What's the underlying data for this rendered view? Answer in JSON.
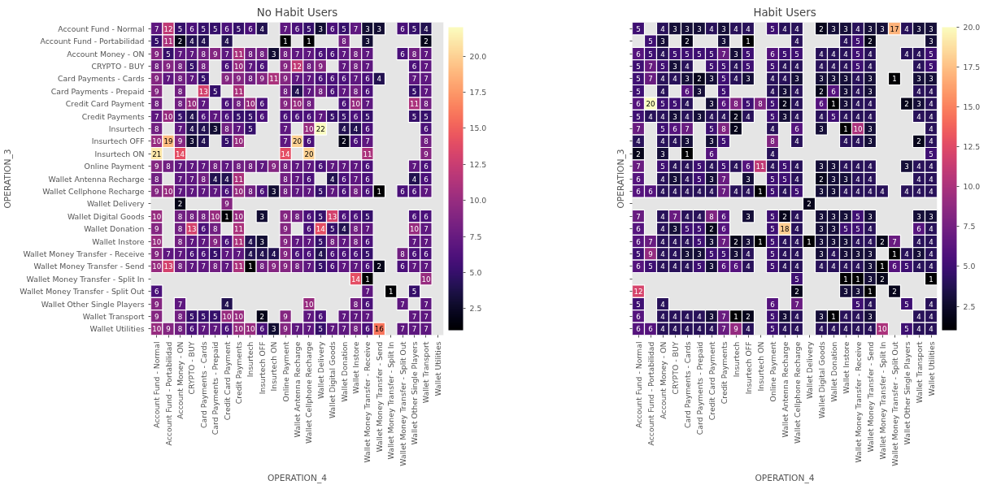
{
  "chart_data": [
    {
      "type": "heatmap",
      "title": "No Habit Users",
      "xlabel": "OPERATION_4",
      "ylabel": "OPERATION_3",
      "categories": [
        "Account Fund - Normal",
        "Account Fund - Portabilidad",
        "Account Money - ON",
        "CRYPTO - BUY",
        "Card Payments - Cards",
        "Card Payments - Prepaid",
        "Credit Card Payment",
        "Credit Payments",
        "Insurtech",
        "Insurtech OFF",
        "Insurtech ON",
        "Online Payment",
        "Wallet Antenna Recharge",
        "Wallet Cellphone Recharge",
        "Wallet Delivery",
        "Wallet Digital Goods",
        "Wallet Donation",
        "Wallet Instore",
        "Wallet Money Transfer - Receive",
        "Wallet Money Transfer - Send",
        "Wallet Money Transfer - Split In",
        "Wallet Money Transfer - Split Out",
        "Wallet Other Single Players",
        "Wallet Transport",
        "Wallet Utilities"
      ],
      "y_categories": [
        "Account Fund - Normal",
        "Account Fund - Portabilidad",
        "Account Money - ON",
        "CRYPTO - BUY",
        "Card Payments - Cards",
        "Card Payments - Prepaid",
        "Credit Card Payment",
        "Credit Payments",
        "Insurtech",
        "Insurtech OFF",
        "Insurtech ON",
        "Online Payment",
        "Wallet Antenna Recharge",
        "Wallet Cellphone Recharge",
        "Wallet Delivery",
        "Wallet Digital Goods",
        "Wallet Donation",
        "Wallet Instore",
        "Wallet Money Transfer - Receive",
        "Wallet Money Transfer - Send",
        "Wallet Money Transfer - Split In",
        "Wallet Money Transfer - Split Out",
        "Wallet Other Single Players",
        "Wallet Transport",
        "Wallet Utilities"
      ],
      "cells": [
        [
          7,
          12,
          5,
          6,
          5,
          5,
          6,
          5,
          6,
          4,
          null,
          7,
          6,
          5,
          3,
          6,
          5,
          7,
          3,
          3,
          null,
          6,
          5,
          4,
          null
        ],
        [
          5,
          11,
          2,
          4,
          4,
          null,
          4,
          null,
          null,
          null,
          null,
          1,
          null,
          1,
          null,
          null,
          8,
          null,
          3,
          null,
          null,
          null,
          null,
          2,
          null
        ],
        [
          9,
          5,
          7,
          7,
          8,
          9,
          7,
          11,
          8,
          8,
          3,
          8,
          7,
          7,
          6,
          6,
          7,
          8,
          7,
          null,
          null,
          6,
          8,
          7,
          null
        ],
        [
          8,
          9,
          8,
          5,
          8,
          null,
          6,
          10,
          7,
          6,
          null,
          9,
          12,
          8,
          9,
          null,
          7,
          8,
          7,
          null,
          null,
          null,
          6,
          7,
          null
        ],
        [
          9,
          7,
          8,
          7,
          5,
          null,
          9,
          9,
          8,
          9,
          11,
          9,
          7,
          7,
          6,
          6,
          6,
          7,
          6,
          4,
          null,
          null,
          7,
          7,
          null
        ],
        [
          9,
          null,
          8,
          null,
          13,
          5,
          null,
          11,
          null,
          null,
          null,
          8,
          4,
          7,
          8,
          6,
          7,
          8,
          6,
          null,
          null,
          null,
          5,
          7,
          null
        ],
        [
          8,
          null,
          8,
          10,
          7,
          null,
          6,
          8,
          10,
          6,
          null,
          9,
          10,
          8,
          null,
          null,
          6,
          10,
          7,
          null,
          null,
          null,
          11,
          8,
          null
        ],
        [
          7,
          10,
          5,
          4,
          6,
          7,
          6,
          5,
          5,
          6,
          null,
          6,
          6,
          6,
          7,
          5,
          5,
          6,
          5,
          null,
          null,
          null,
          5,
          5,
          null
        ],
        [
          8,
          null,
          7,
          4,
          4,
          3,
          8,
          7,
          5,
          null,
          null,
          7,
          null,
          10,
          22,
          null,
          4,
          4,
          6,
          null,
          null,
          null,
          null,
          6,
          null
        ],
        [
          10,
          19,
          9,
          3,
          4,
          null,
          5,
          10,
          null,
          null,
          null,
          7,
          20,
          6,
          null,
          null,
          2,
          6,
          7,
          null,
          null,
          null,
          null,
          8,
          null
        ],
        [
          21,
          null,
          14,
          null,
          null,
          null,
          null,
          null,
          null,
          null,
          null,
          14,
          null,
          20,
          null,
          null,
          null,
          null,
          11,
          null,
          null,
          null,
          null,
          9,
          null
        ],
        [
          9,
          8,
          7,
          7,
          7,
          8,
          7,
          8,
          8,
          7,
          9,
          8,
          7,
          7,
          6,
          7,
          7,
          7,
          6,
          null,
          null,
          null,
          7,
          6,
          null
        ],
        [
          8,
          null,
          7,
          7,
          8,
          4,
          4,
          11,
          null,
          null,
          null,
          8,
          7,
          6,
          null,
          4,
          6,
          7,
          6,
          null,
          null,
          null,
          4,
          6,
          null
        ],
        [
          9,
          10,
          7,
          7,
          7,
          7,
          6,
          10,
          8,
          6,
          3,
          8,
          7,
          7,
          5,
          7,
          6,
          8,
          6,
          1,
          null,
          6,
          6,
          7,
          null
        ],
        [
          null,
          null,
          2,
          null,
          null,
          null,
          9,
          null,
          null,
          null,
          null,
          null,
          null,
          null,
          null,
          null,
          null,
          null,
          null,
          null,
          null,
          null,
          null,
          null,
          null
        ],
        [
          10,
          null,
          8,
          8,
          8,
          10,
          1,
          10,
          null,
          3,
          null,
          9,
          8,
          6,
          5,
          13,
          6,
          6,
          5,
          null,
          null,
          null,
          6,
          6,
          null
        ],
        [
          9,
          null,
          8,
          13,
          6,
          8,
          null,
          11,
          null,
          null,
          null,
          9,
          null,
          6,
          14,
          5,
          4,
          8,
          7,
          null,
          null,
          null,
          10,
          7,
          null
        ],
        [
          10,
          null,
          8,
          7,
          7,
          9,
          6,
          11,
          4,
          3,
          null,
          9,
          7,
          7,
          5,
          8,
          7,
          8,
          6,
          null,
          null,
          null,
          7,
          7,
          null
        ],
        [
          9,
          7,
          7,
          6,
          6,
          5,
          7,
          7,
          4,
          4,
          4,
          9,
          6,
          6,
          4,
          6,
          6,
          6,
          5,
          null,
          null,
          8,
          6,
          6,
          null
        ],
        [
          10,
          13,
          8,
          7,
          7,
          8,
          7,
          11,
          1,
          8,
          9,
          9,
          8,
          7,
          5,
          6,
          7,
          7,
          6,
          2,
          null,
          6,
          7,
          7,
          null
        ],
        [
          null,
          null,
          null,
          null,
          null,
          null,
          null,
          null,
          null,
          null,
          null,
          null,
          null,
          null,
          null,
          null,
          null,
          14,
          1,
          null,
          null,
          null,
          null,
          10,
          null
        ],
        [
          6,
          null,
          null,
          null,
          null,
          null,
          null,
          null,
          null,
          null,
          null,
          null,
          null,
          null,
          null,
          null,
          null,
          null,
          7,
          null,
          1,
          null,
          5,
          null,
          null
        ],
        [
          9,
          null,
          7,
          null,
          null,
          null,
          4,
          null,
          null,
          null,
          null,
          null,
          null,
          10,
          null,
          null,
          null,
          8,
          6,
          null,
          null,
          7,
          null,
          7,
          null
        ],
        [
          9,
          null,
          8,
          5,
          5,
          5,
          10,
          10,
          null,
          2,
          null,
          9,
          null,
          7,
          6,
          null,
          7,
          7,
          7,
          null,
          null,
          null,
          7,
          7,
          null
        ],
        [
          10,
          9,
          8,
          6,
          7,
          7,
          6,
          10,
          10,
          6,
          3,
          9,
          7,
          7,
          5,
          7,
          7,
          8,
          6,
          16,
          null,
          7,
          7,
          7,
          null
        ]
      ],
      "clim": [
        1,
        22
      ],
      "cticks": [
        2.5,
        {
          "value": 5,
          "label": "5.0"
        },
        7.5,
        {
          "value": 10,
          "label": "10.0"
        },
        12.5,
        {
          "value": 15,
          "label": "15.0"
        },
        17.5,
        {
          "value": 20,
          "label": "20.0"
        }
      ],
      "data_labels": true
    },
    {
      "type": "heatmap",
      "title": "Habit Users",
      "xlabel": "OPERATION_4",
      "ylabel": "OPERATION_3",
      "tick_labels": "x",
      "categories": [
        "Account Fund - Normal",
        "Account Fund - Portabilidad",
        "Account Money - ON",
        "CRYPTO - BUY",
        "Card Payments - Cards",
        "Card Payments - Prepaid",
        "Credit Card Payment",
        "Credit Payments",
        "Insurtech",
        "Insurtech OFF",
        "Insurtech ON",
        "Online Payment",
        "Wallet Antenna Recharge",
        "Wallet Cellphone Recharge",
        "Wallet Delivery",
        "Wallet Digital Goods",
        "Wallet Donation",
        "Wallet Instore",
        "Wallet Money Transfer - Receive",
        "Wallet Money Transfer - Send",
        "Wallet Money Transfer - Split In",
        "Wallet Money Transfer - Split Out",
        "Wallet Other Single Players",
        "Wallet Transport",
        "Wallet Utilities"
      ],
      "y_categories": [
        null,
        null,
        null,
        null,
        null,
        null,
        null,
        null,
        null,
        null,
        null,
        null,
        null,
        null,
        null,
        null,
        null,
        null,
        null,
        null,
        null,
        null,
        null,
        null,
        null
      ],
      "cells": [
        [
          5,
          null,
          4,
          3,
          3,
          3,
          4,
          3,
          4,
          4,
          null,
          5,
          4,
          4,
          null,
          2,
          3,
          3,
          4,
          3,
          3,
          17,
          4,
          3,
          3
        ],
        [
          null,
          5,
          3,
          null,
          2,
          null,
          null,
          3,
          null,
          1,
          null,
          null,
          null,
          4,
          null,
          null,
          null,
          4,
          5,
          2,
          null,
          null,
          null,
          null,
          3
        ],
        [
          6,
          5,
          4,
          5,
          5,
          5,
          5,
          7,
          3,
          5,
          null,
          6,
          5,
          5,
          null,
          4,
          4,
          4,
          5,
          4,
          null,
          null,
          4,
          4,
          5
        ],
        [
          5,
          7,
          5,
          3,
          4,
          null,
          5,
          5,
          4,
          5,
          null,
          5,
          4,
          4,
          null,
          4,
          4,
          4,
          5,
          4,
          null,
          null,
          null,
          4,
          5
        ],
        [
          5,
          7,
          4,
          4,
          3,
          2,
          3,
          5,
          4,
          3,
          null,
          4,
          4,
          3,
          null,
          3,
          3,
          3,
          4,
          3,
          null,
          1,
          null,
          3,
          3
        ],
        [
          5,
          null,
          4,
          null,
          6,
          3,
          null,
          5,
          null,
          null,
          null,
          4,
          3,
          4,
          null,
          2,
          6,
          3,
          4,
          3,
          null,
          null,
          null,
          4,
          4
        ],
        [
          6,
          20,
          5,
          5,
          4,
          null,
          3,
          6,
          8,
          5,
          8,
          5,
          2,
          4,
          null,
          6,
          1,
          3,
          4,
          4,
          null,
          null,
          2,
          3,
          4
        ],
        [
          5,
          4,
          4,
          3,
          4,
          3,
          4,
          4,
          2,
          4,
          null,
          5,
          3,
          4,
          null,
          4,
          5,
          4,
          4,
          4,
          null,
          null,
          null,
          4,
          4
        ],
        [
          7,
          null,
          5,
          6,
          7,
          null,
          5,
          8,
          2,
          null,
          null,
          4,
          null,
          6,
          null,
          3,
          null,
          1,
          10,
          3,
          null,
          null,
          null,
          null,
          4
        ],
        [
          4,
          null,
          4,
          4,
          3,
          null,
          3,
          5,
          null,
          null,
          null,
          8,
          null,
          4,
          null,
          null,
          null,
          4,
          4,
          3,
          null,
          null,
          null,
          2,
          4
        ],
        [
          2,
          null,
          3,
          null,
          1,
          null,
          6,
          null,
          null,
          null,
          null,
          4,
          null,
          null,
          null,
          null,
          null,
          null,
          null,
          null,
          null,
          null,
          null,
          null,
          5
        ],
        [
          7,
          null,
          5,
          4,
          4,
          5,
          4,
          5,
          4,
          6,
          11,
          4,
          5,
          4,
          null,
          3,
          3,
          4,
          4,
          4,
          null,
          null,
          3,
          4,
          4
        ],
        [
          6,
          null,
          4,
          3,
          4,
          5,
          3,
          7,
          null,
          3,
          null,
          5,
          5,
          4,
          null,
          2,
          3,
          3,
          4,
          4,
          null,
          null,
          null,
          4,
          4
        ],
        [
          6,
          6,
          4,
          4,
          4,
          4,
          4,
          7,
          4,
          4,
          1,
          5,
          4,
          5,
          null,
          3,
          3,
          4,
          4,
          4,
          4,
          null,
          4,
          4,
          4
        ],
        [
          null,
          null,
          null,
          null,
          null,
          null,
          null,
          null,
          null,
          null,
          null,
          null,
          null,
          null,
          2,
          null,
          null,
          null,
          null,
          null,
          null,
          null,
          null,
          null,
          null
        ],
        [
          7,
          null,
          4,
          7,
          4,
          4,
          8,
          6,
          null,
          3,
          null,
          5,
          2,
          4,
          null,
          3,
          3,
          3,
          5,
          3,
          null,
          null,
          null,
          3,
          3
        ],
        [
          6,
          null,
          4,
          3,
          5,
          5,
          2,
          6,
          null,
          null,
          null,
          5,
          18,
          4,
          null,
          3,
          3,
          5,
          5,
          4,
          null,
          null,
          null,
          6,
          4
        ],
        [
          6,
          7,
          4,
          4,
          4,
          5,
          3,
          7,
          2,
          3,
          1,
          5,
          4,
          4,
          1,
          3,
          3,
          3,
          4,
          4,
          2,
          7,
          null,
          4,
          4
        ],
        [
          5,
          9,
          4,
          4,
          3,
          3,
          5,
          5,
          3,
          4,
          null,
          5,
          4,
          4,
          null,
          3,
          4,
          3,
          3,
          3,
          null,
          1,
          4,
          3,
          4
        ],
        [
          6,
          5,
          4,
          4,
          4,
          5,
          3,
          6,
          6,
          4,
          null,
          5,
          4,
          4,
          null,
          4,
          4,
          4,
          4,
          3,
          1,
          6,
          5,
          4,
          4
        ],
        [
          null,
          null,
          null,
          null,
          null,
          null,
          null,
          null,
          null,
          null,
          null,
          null,
          null,
          5,
          null,
          null,
          null,
          1,
          1,
          3,
          2,
          null,
          null,
          null,
          1
        ],
        [
          12,
          null,
          null,
          null,
          null,
          null,
          null,
          null,
          null,
          null,
          null,
          null,
          null,
          2,
          null,
          null,
          null,
          3,
          3,
          1,
          null,
          2,
          null,
          null,
          null
        ],
        [
          5,
          null,
          4,
          null,
          null,
          null,
          null,
          null,
          null,
          null,
          null,
          6,
          null,
          7,
          null,
          null,
          null,
          null,
          5,
          4,
          null,
          null,
          5,
          null,
          4
        ],
        [
          6,
          null,
          4,
          4,
          4,
          4,
          3,
          7,
          1,
          2,
          null,
          5,
          3,
          4,
          null,
          3,
          1,
          4,
          4,
          3,
          null,
          null,
          null,
          4,
          4
        ],
        [
          6,
          6,
          4,
          4,
          4,
          4,
          4,
          7,
          9,
          4,
          null,
          5,
          4,
          4,
          null,
          4,
          4,
          4,
          4,
          4,
          10,
          null,
          5,
          4,
          4
        ]
      ],
      "clim": [
        1,
        20
      ],
      "cticks": [
        2.5,
        {
          "value": 5,
          "label": "5.0"
        },
        7.5,
        {
          "value": 10,
          "label": "10.0"
        },
        12.5,
        {
          "value": 15,
          "label": "15.0"
        },
        17.5,
        {
          "value": 20,
          "label": "20.0"
        }
      ],
      "data_labels": true
    }
  ]
}
